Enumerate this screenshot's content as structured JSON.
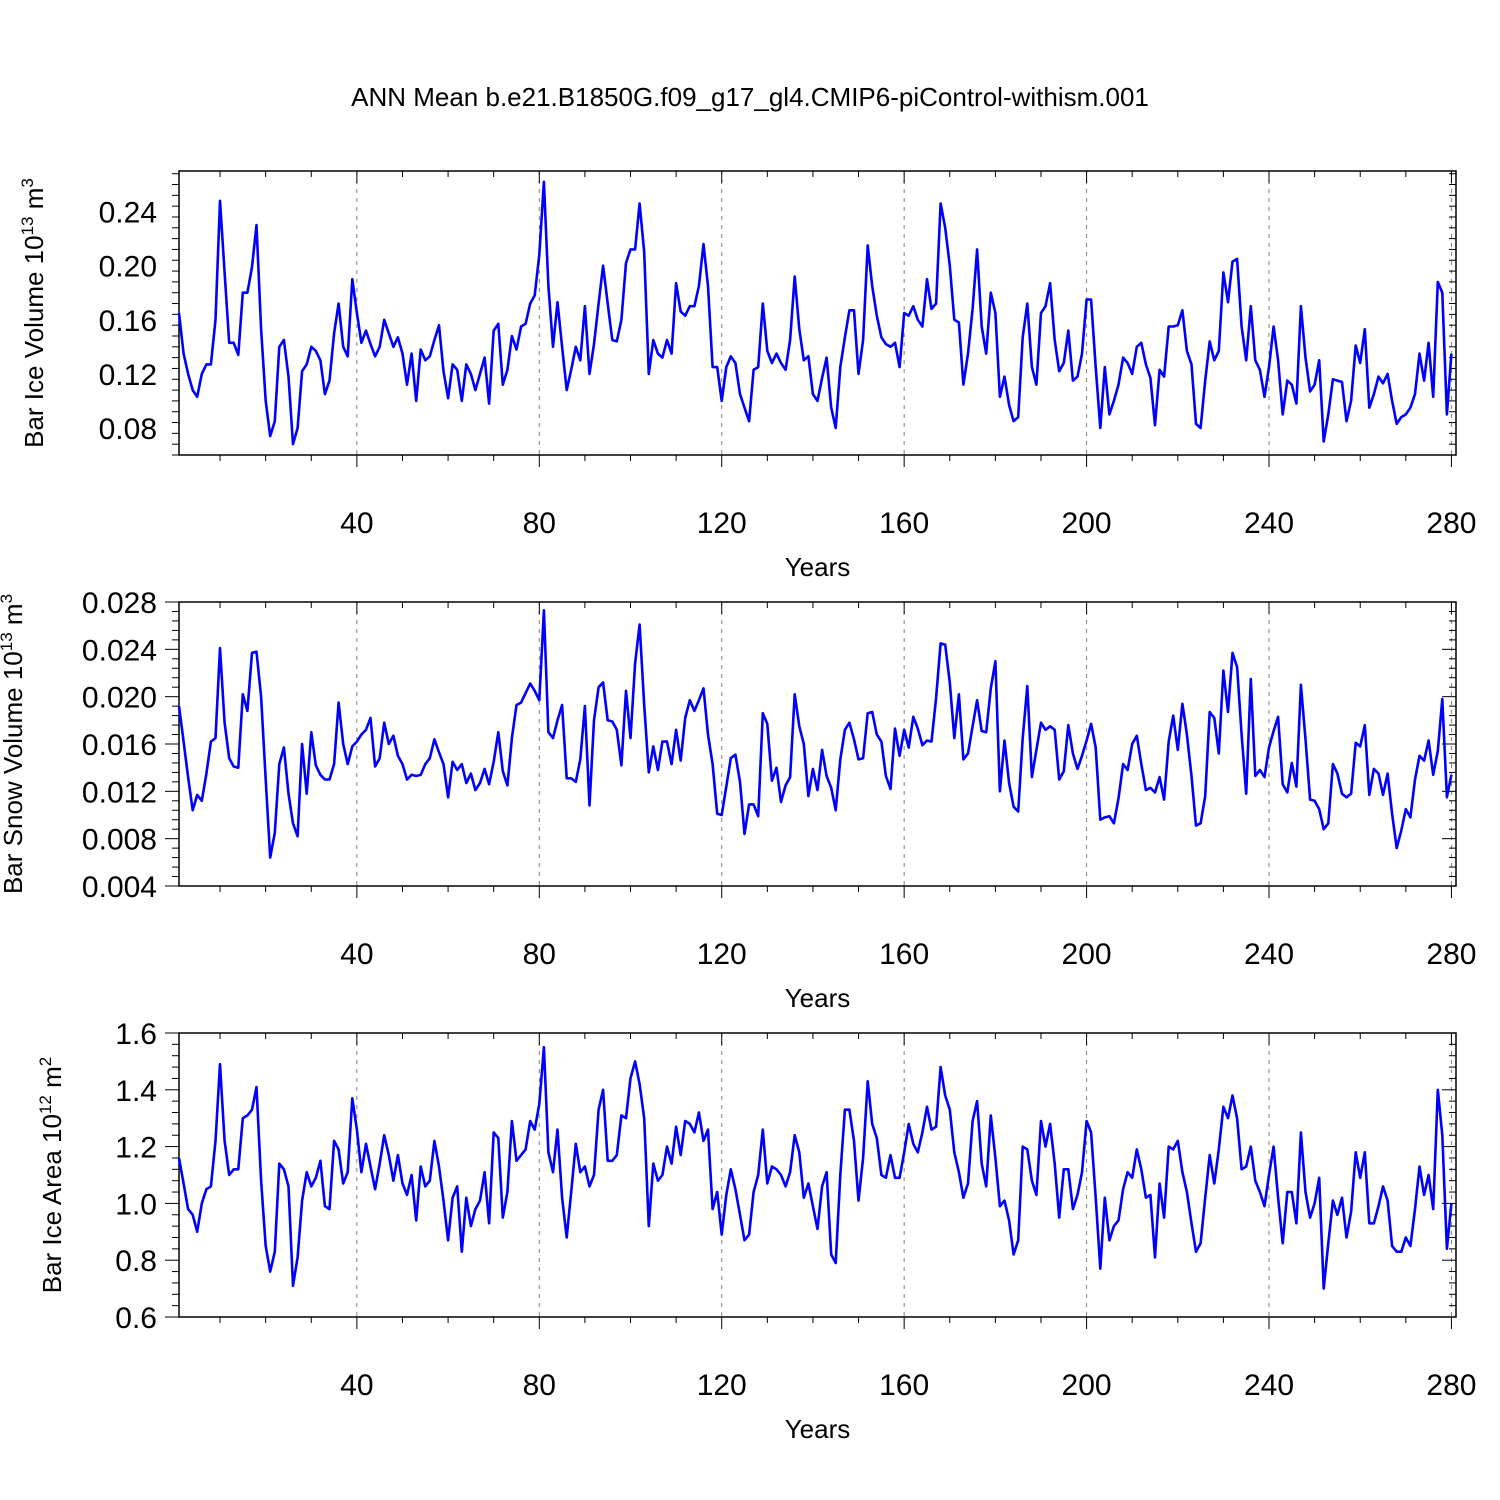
{
  "title": "ANN Mean b.e21.B1850G.f09_g17_gl4.CMIP6-piControl-withism.001",
  "line_color": "#0000ff",
  "chart_data": [
    {
      "type": "line",
      "ylabel": "Bar Ice Volume 10",
      "ylabel_exp": "13",
      "ylabel_unit": " m",
      "ylabel_unit_exp": "3",
      "xlabel": "Years",
      "xlim": [
        1,
        281
      ],
      "ylim": [
        0.06,
        0.27
      ],
      "xticks": [
        40,
        80,
        120,
        160,
        200,
        240,
        280
      ],
      "yticks": [
        "0.08",
        "0.12",
        "0.16",
        "0.20",
        "0.24"
      ],
      "series": [
        {
          "x_start": 1,
          "values": [
            0.165,
            0.135,
            0.12,
            0.108,
            0.103,
            0.12,
            0.127,
            0.127,
            0.16,
            0.248,
            0.195,
            0.143,
            0.143,
            0.134,
            0.18,
            0.18,
            0.199,
            0.23,
            0.153,
            0.1,
            0.074,
            0.085,
            0.14,
            0.145,
            0.118,
            0.068,
            0.08,
            0.122,
            0.127,
            0.14,
            0.137,
            0.13,
            0.105,
            0.115,
            0.15,
            0.172,
            0.14,
            0.133,
            0.19,
            0.165,
            0.143,
            0.152,
            0.142,
            0.133,
            0.14,
            0.16,
            0.15,
            0.14,
            0.147,
            0.135,
            0.112,
            0.135,
            0.1,
            0.138,
            0.13,
            0.133,
            0.145,
            0.156,
            0.122,
            0.102,
            0.127,
            0.123,
            0.1,
            0.127,
            0.12,
            0.108,
            0.12,
            0.132,
            0.098,
            0.152,
            0.157,
            0.112,
            0.123,
            0.148,
            0.138,
            0.155,
            0.157,
            0.172,
            0.178,
            0.208,
            0.262,
            0.185,
            0.14,
            0.173,
            0.14,
            0.108,
            0.123,
            0.14,
            0.13,
            0.17,
            0.12,
            0.142,
            0.172,
            0.2,
            0.172,
            0.145,
            0.144,
            0.16,
            0.202,
            0.212,
            0.212,
            0.246,
            0.21,
            0.12,
            0.145,
            0.135,
            0.132,
            0.145,
            0.135,
            0.187,
            0.166,
            0.163,
            0.17,
            0.17,
            0.185,
            0.216,
            0.185,
            0.125,
            0.125,
            0.1,
            0.125,
            0.133,
            0.128,
            0.105,
            0.095,
            0.085,
            0.123,
            0.125,
            0.172,
            0.137,
            0.128,
            0.135,
            0.128,
            0.123,
            0.145,
            0.192,
            0.153,
            0.13,
            0.133,
            0.105,
            0.1,
            0.117,
            0.132,
            0.095,
            0.08,
            0.125,
            0.147,
            0.167,
            0.167,
            0.12,
            0.145,
            0.215,
            0.185,
            0.163,
            0.147,
            0.142,
            0.14,
            0.143,
            0.125,
            0.165,
            0.163,
            0.17,
            0.16,
            0.155,
            0.19,
            0.168,
            0.172,
            0.246,
            0.228,
            0.2,
            0.16,
            0.158,
            0.112,
            0.135,
            0.168,
            0.212,
            0.155,
            0.135,
            0.18,
            0.165,
            0.103,
            0.118,
            0.097,
            0.085,
            0.088,
            0.147,
            0.172,
            0.125,
            0.112,
            0.165,
            0.17,
            0.187,
            0.145,
            0.122,
            0.128,
            0.152,
            0.115,
            0.118,
            0.135,
            0.175,
            0.175,
            0.125,
            0.08,
            0.125,
            0.09,
            0.1,
            0.112,
            0.132,
            0.128,
            0.12,
            0.14,
            0.143,
            0.127,
            0.117,
            0.082,
            0.123,
            0.118,
            0.155,
            0.155,
            0.156,
            0.167,
            0.137,
            0.127,
            0.083,
            0.08,
            0.115,
            0.144,
            0.13,
            0.137,
            0.195,
            0.173,
            0.203,
            0.205,
            0.155,
            0.13,
            0.17,
            0.13,
            0.123,
            0.103,
            0.125,
            0.155,
            0.13,
            0.09,
            0.115,
            0.112,
            0.098,
            0.17,
            0.132,
            0.107,
            0.112,
            0.13,
            0.07,
            0.09,
            0.116,
            0.115,
            0.114,
            0.085,
            0.1,
            0.141,
            0.128,
            0.153,
            0.095,
            0.105,
            0.118,
            0.113,
            0.12,
            0.1,
            0.083,
            0.088,
            0.09,
            0.095,
            0.105,
            0.135,
            0.115,
            0.143,
            0.103,
            0.188,
            0.18,
            0.09,
            0.135
          ]
        }
      ]
    },
    {
      "type": "line",
      "ylabel": "Bar Snow Volume 10",
      "ylabel_exp": "13",
      "ylabel_unit": " m",
      "ylabel_unit_exp": "3",
      "xlabel": "Years",
      "xlim": [
        1,
        281
      ],
      "ylim": [
        0.004,
        0.028
      ],
      "xticks": [
        40,
        80,
        120,
        160,
        200,
        240,
        280
      ],
      "yticks": [
        "0.004",
        "0.008",
        "0.012",
        "0.016",
        "0.020",
        "0.024",
        "0.028"
      ],
      "series": [
        {
          "x_start": 1,
          "values": [
            0.0192,
            0.0162,
            0.0132,
            0.0104,
            0.0117,
            0.0112,
            0.0135,
            0.0162,
            0.0165,
            0.0241,
            0.0178,
            0.0148,
            0.0141,
            0.014,
            0.0202,
            0.0188,
            0.0237,
            0.0238,
            0.02,
            0.013,
            0.0064,
            0.0085,
            0.0143,
            0.0157,
            0.0118,
            0.0093,
            0.0082,
            0.016,
            0.0118,
            0.017,
            0.0142,
            0.0134,
            0.013,
            0.013,
            0.0143,
            0.0195,
            0.016,
            0.0143,
            0.0158,
            0.0162,
            0.0168,
            0.0172,
            0.0182,
            0.0141,
            0.0148,
            0.0178,
            0.016,
            0.0167,
            0.015,
            0.0143,
            0.013,
            0.0134,
            0.0133,
            0.0134,
            0.0143,
            0.0148,
            0.0164,
            0.0153,
            0.0143,
            0.0115,
            0.0145,
            0.0138,
            0.0143,
            0.0127,
            0.0135,
            0.0121,
            0.0127,
            0.0139,
            0.0126,
            0.0145,
            0.017,
            0.0137,
            0.0125,
            0.0165,
            0.0193,
            0.0195,
            0.0203,
            0.0211,
            0.0205,
            0.0197,
            0.0273,
            0.017,
            0.0165,
            0.018,
            0.0193,
            0.0131,
            0.0131,
            0.0128,
            0.0147,
            0.0192,
            0.0108,
            0.018,
            0.0208,
            0.0212,
            0.018,
            0.0179,
            0.0172,
            0.0142,
            0.0205,
            0.0165,
            0.0228,
            0.0261,
            0.0193,
            0.0136,
            0.0158,
            0.0138,
            0.0162,
            0.0162,
            0.0143,
            0.0172,
            0.0146,
            0.0182,
            0.0197,
            0.0188,
            0.0197,
            0.0207,
            0.0168,
            0.0143,
            0.0101,
            0.01,
            0.0124,
            0.0148,
            0.0151,
            0.0128,
            0.0084,
            0.0109,
            0.0109,
            0.0099,
            0.0186,
            0.0177,
            0.0129,
            0.014,
            0.0111,
            0.0125,
            0.0132,
            0.0202,
            0.0175,
            0.016,
            0.0116,
            0.0139,
            0.0121,
            0.0155,
            0.0133,
            0.0123,
            0.0104,
            0.0147,
            0.0172,
            0.0178,
            0.0164,
            0.0147,
            0.0148,
            0.0186,
            0.0187,
            0.0168,
            0.0162,
            0.0133,
            0.0122,
            0.0173,
            0.015,
            0.0172,
            0.0157,
            0.0183,
            0.0173,
            0.0159,
            0.0163,
            0.0162,
            0.0199,
            0.0245,
            0.0244,
            0.0212,
            0.0165,
            0.0202,
            0.0147,
            0.0152,
            0.0175,
            0.0197,
            0.0171,
            0.017,
            0.0207,
            0.023,
            0.012,
            0.0163,
            0.0127,
            0.0107,
            0.0103,
            0.0165,
            0.0209,
            0.0132,
            0.0155,
            0.0178,
            0.0172,
            0.0175,
            0.0172,
            0.013,
            0.0137,
            0.0176,
            0.0152,
            0.0139,
            0.015,
            0.0163,
            0.0177,
            0.0157,
            0.0096,
            0.0098,
            0.0099,
            0.0093,
            0.0114,
            0.0143,
            0.0138,
            0.016,
            0.0167,
            0.0143,
            0.0121,
            0.0123,
            0.0119,
            0.0132,
            0.0113,
            0.0162,
            0.0184,
            0.0155,
            0.0194,
            0.0168,
            0.0133,
            0.0091,
            0.0093,
            0.0116,
            0.0187,
            0.0182,
            0.0152,
            0.0222,
            0.0187,
            0.0237,
            0.0225,
            0.0168,
            0.0118,
            0.0215,
            0.0133,
            0.0138,
            0.0132,
            0.0157,
            0.0171,
            0.0183,
            0.0126,
            0.0119,
            0.0144,
            0.0124,
            0.021,
            0.0164,
            0.0113,
            0.0112,
            0.0105,
            0.0088,
            0.0093,
            0.0143,
            0.0135,
            0.0118,
            0.0115,
            0.0118,
            0.0161,
            0.0158,
            0.0176,
            0.0117,
            0.0139,
            0.0135,
            0.0117,
            0.0135,
            0.0101,
            0.0072,
            0.0087,
            0.0105,
            0.0098,
            0.013,
            0.015,
            0.0146,
            0.0163,
            0.0134,
            0.0154,
            0.0198,
            0.0115,
            0.0134
          ]
        }
      ]
    },
    {
      "type": "line",
      "ylabel": "Bar Ice Area 10",
      "ylabel_exp": "12",
      "ylabel_unit": " m",
      "ylabel_unit_exp": "2",
      "xlabel": "Years",
      "xlim": [
        1,
        281
      ],
      "ylim": [
        0.6,
        1.6
      ],
      "xticks": [
        40,
        80,
        120,
        160,
        200,
        240,
        280
      ],
      "yticks": [
        "0.6",
        "0.8",
        "1.0",
        "1.2",
        "1.4",
        "1.6"
      ],
      "series": [
        {
          "x_start": 1,
          "values": [
            1.16,
            1.07,
            0.98,
            0.96,
            0.9,
            1.0,
            1.05,
            1.06,
            1.22,
            1.49,
            1.22,
            1.1,
            1.12,
            1.12,
            1.3,
            1.31,
            1.33,
            1.41,
            1.08,
            0.85,
            0.76,
            0.83,
            1.14,
            1.12,
            1.06,
            0.71,
            0.81,
            1.01,
            1.11,
            1.06,
            1.09,
            1.15,
            0.99,
            0.98,
            1.22,
            1.19,
            1.07,
            1.11,
            1.37,
            1.26,
            1.11,
            1.21,
            1.13,
            1.05,
            1.14,
            1.24,
            1.17,
            1.08,
            1.17,
            1.07,
            1.03,
            1.1,
            0.94,
            1.13,
            1.06,
            1.08,
            1.22,
            1.13,
            1.01,
            0.87,
            1.02,
            1.06,
            0.83,
            1.02,
            0.92,
            0.98,
            1.01,
            1.11,
            0.93,
            1.25,
            1.23,
            0.95,
            1.04,
            1.29,
            1.15,
            1.17,
            1.19,
            1.29,
            1.26,
            1.35,
            1.55,
            1.18,
            1.11,
            1.26,
            1.02,
            0.88,
            1.04,
            1.21,
            1.11,
            1.13,
            1.06,
            1.1,
            1.33,
            1.4,
            1.15,
            1.15,
            1.17,
            1.31,
            1.3,
            1.44,
            1.5,
            1.42,
            1.3,
            0.92,
            1.14,
            1.08,
            1.1,
            1.2,
            1.14,
            1.27,
            1.17,
            1.29,
            1.28,
            1.25,
            1.32,
            1.22,
            1.26,
            0.98,
            1.04,
            0.89,
            1.03,
            1.12,
            1.05,
            0.96,
            0.87,
            0.89,
            1.04,
            1.1,
            1.26,
            1.07,
            1.13,
            1.12,
            1.1,
            1.06,
            1.11,
            1.24,
            1.18,
            1.02,
            1.07,
            0.99,
            0.91,
            1.06,
            1.11,
            0.82,
            0.79,
            1.1,
            1.33,
            1.33,
            1.22,
            1.01,
            1.16,
            1.43,
            1.28,
            1.23,
            1.1,
            1.09,
            1.17,
            1.09,
            1.09,
            1.18,
            1.28,
            1.21,
            1.18,
            1.25,
            1.34,
            1.26,
            1.27,
            1.48,
            1.38,
            1.33,
            1.18,
            1.11,
            1.02,
            1.07,
            1.29,
            1.36,
            1.14,
            1.06,
            1.31,
            1.16,
            0.99,
            1.01,
            0.94,
            0.82,
            0.87,
            1.2,
            1.19,
            1.08,
            1.03,
            1.29,
            1.2,
            1.28,
            1.14,
            0.95,
            1.12,
            1.12,
            0.98,
            1.03,
            1.11,
            1.29,
            1.25,
            1.02,
            0.77,
            1.02,
            0.87,
            0.92,
            0.94,
            1.05,
            1.11,
            1.09,
            1.19,
            1.12,
            1.02,
            1.03,
            0.81,
            1.07,
            0.95,
            1.2,
            1.19,
            1.22,
            1.11,
            1.04,
            0.93,
            0.83,
            0.86,
            1.02,
            1.17,
            1.07,
            1.19,
            1.34,
            1.3,
            1.38,
            1.3,
            1.12,
            1.13,
            1.2,
            1.08,
            1.04,
            0.99,
            1.1,
            1.2,
            1.02,
            0.86,
            1.04,
            1.04,
            0.93,
            1.25,
            1.04,
            0.95,
            1.0,
            1.09,
            0.7,
            0.86,
            1.01,
            0.96,
            1.02,
            0.88,
            0.97,
            1.18,
            1.09,
            1.18,
            0.93,
            0.93,
            0.99,
            1.06,
            1.01,
            0.85,
            0.83,
            0.83,
            0.88,
            0.85,
            0.98,
            1.13,
            1.03,
            1.1,
            0.98,
            1.4,
            1.24,
            0.84,
            1.0
          ]
        }
      ]
    }
  ]
}
